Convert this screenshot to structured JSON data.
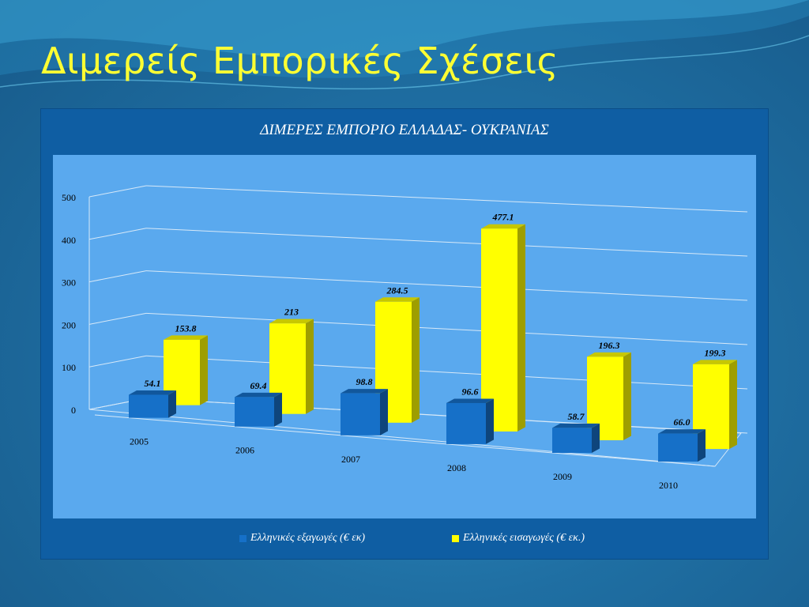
{
  "slide": {
    "title": "Διμερείς Εμπορικές Σχέσεις"
  },
  "colors": {
    "exports": "#1670c8",
    "imports": "#ffff00",
    "title": "#ffff33",
    "plot_bg": "#5aa9ee",
    "panel_bg": "#0f5ea3"
  },
  "chart_data": {
    "type": "bar",
    "title": "ΔΙΜΕΡΕΣ ΕΜΠΟΡΙΟ ΕΛΛΑΔΑΣ- ΟΥΚΡΑΝΙΑΣ",
    "categories": [
      "2005",
      "2006",
      "2007",
      "2008",
      "2009",
      "2010"
    ],
    "series": [
      {
        "name": "Ελληνικές εξαγωγές (€ εκ)",
        "values": [
          54.1,
          69.4,
          98.8,
          96.6,
          58.7,
          66.0
        ],
        "labels": [
          "54.1",
          "69.4",
          "98.8",
          "96.6",
          "58.7",
          "66.0"
        ],
        "color": "#1670c8"
      },
      {
        "name": "Ελληνικές εισαγωγές (€ εκ.)",
        "values": [
          153.8,
          213,
          284.5,
          477.1,
          196.3,
          199.3
        ],
        "labels": [
          "153.8",
          "213",
          "284.5",
          "477.1",
          "196.3",
          "199.3"
        ],
        "color": "#ffff00"
      }
    ],
    "yticks": [
      "0",
      "100",
      "200",
      "300",
      "400",
      "500"
    ],
    "ylim": [
      0,
      500
    ],
    "grid": true,
    "legend": "bottom",
    "style": "3d"
  }
}
